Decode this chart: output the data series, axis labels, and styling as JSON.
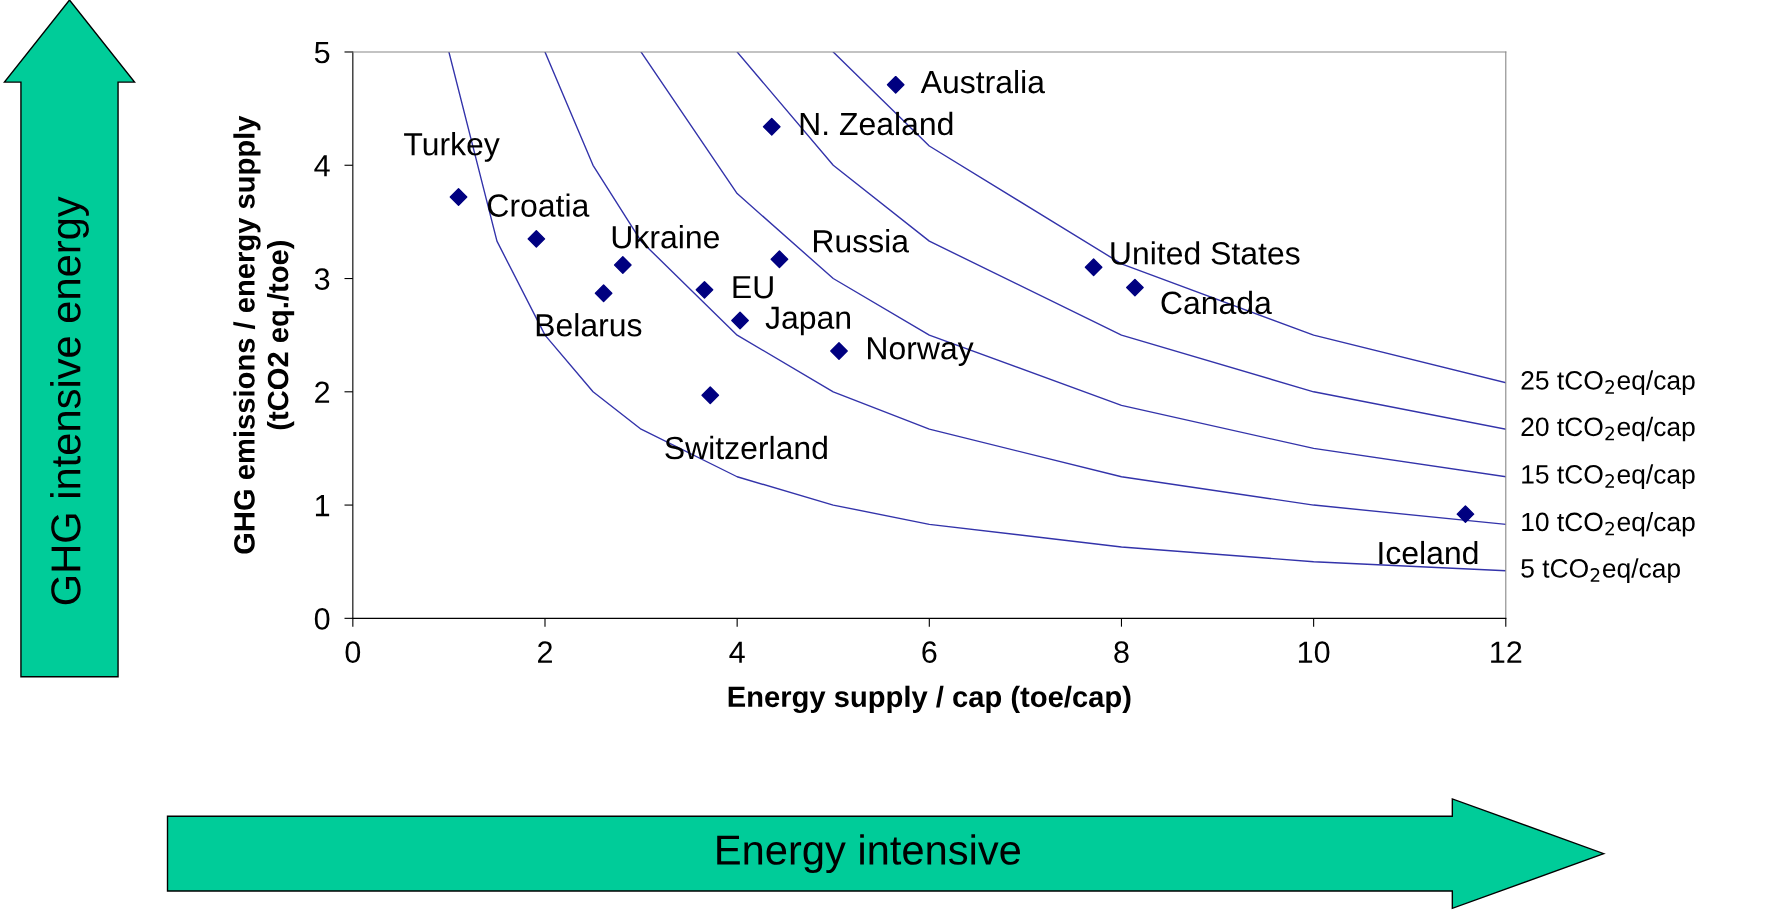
{
  "chart_data": {
    "type": "scatter",
    "xlabel": "Energy supply / cap (toe/cap)",
    "ylabel": "GHG emissions / energy supply\n(tCO2 eq./toe)",
    "xlim": [
      0,
      12
    ],
    "ylim": [
      0,
      5
    ],
    "xticks": [
      0,
      2,
      4,
      6,
      8,
      10,
      12
    ],
    "yticks": [
      0,
      1,
      2,
      3,
      4,
      5
    ],
    "grid": false,
    "marker": "diamond",
    "series": [
      {
        "color": "#000080",
        "x": [
          1.1,
          1.91,
          2.61,
          2.81,
          3.66,
          4.03,
          3.72,
          4.36,
          4.44,
          5.06,
          5.65,
          7.71,
          8.14,
          11.58
        ],
        "values": [
          3.72,
          3.35,
          2.87,
          3.12,
          2.9,
          2.63,
          1.97,
          4.34,
          3.17,
          2.36,
          4.71,
          3.1,
          2.92,
          0.92
        ]
      },
      {
        "type": "line",
        "marker": "none",
        "name": "25 tCO$_{2}$eq/cap",
        "color": "#3333aa",
        "x": [
          5,
          6,
          8,
          10,
          12
        ],
        "values": [
          5,
          4.17,
          3.13,
          2.5,
          2.08
        ]
      },
      {
        "type": "line",
        "marker": "none",
        "name": "20 tCO$_{2}$eq/cap",
        "color": "#3333aa",
        "x": [
          4,
          5,
          6,
          8,
          10,
          12
        ],
        "values": [
          5,
          4,
          3.33,
          2.5,
          2,
          1.67
        ]
      },
      {
        "type": "line",
        "marker": "none",
        "name": "15 tCO$_{2}$eq/cap",
        "color": "#3333aa",
        "x": [
          3,
          4,
          5,
          6,
          8,
          10,
          12
        ],
        "values": [
          5,
          3.75,
          3,
          2.5,
          1.88,
          1.5,
          1.25
        ]
      },
      {
        "type": "line",
        "marker": "none",
        "name": "10 tCO$_{2}$eq/cap",
        "color": "#3333aa",
        "x": [
          2,
          2.5,
          3,
          4,
          5,
          6,
          8,
          10,
          12
        ],
        "values": [
          5,
          4,
          3.33,
          2.5,
          2,
          1.67,
          1.25,
          1,
          0.83
        ]
      },
      {
        "type": "line",
        "marker": "none",
        "name": "5 tCO$_{2}$eq/cap",
        "color": "#3333aa",
        "x": [
          1,
          1.5,
          2,
          2.5,
          3,
          4,
          5,
          6,
          8,
          10,
          12
        ],
        "values": [
          5,
          3.33,
          2.5,
          2,
          1.67,
          1.25,
          1,
          0.83,
          0.63,
          0.5,
          0.42
        ]
      }
    ],
    "annotations": [
      {
        "text": "Turkey",
        "x": 1.1,
        "y": 3.72
      },
      {
        "text": "Croatia",
        "x": 1.91,
        "y": 3.35
      },
      {
        "text": "Belarus",
        "x": 2.61,
        "y": 2.87
      },
      {
        "text": "Ukraine",
        "x": 2.81,
        "y": 3.12
      },
      {
        "text": "EU",
        "x": 3.66,
        "y": 2.9
      },
      {
        "text": "Japan",
        "x": 4.03,
        "y": 2.63
      },
      {
        "text": "Switzerland",
        "x": 3.72,
        "y": 1.97
      },
      {
        "text": "N. Zealand",
        "x": 4.36,
        "y": 4.34
      },
      {
        "text": "Russia",
        "x": 4.44,
        "y": 3.17
      },
      {
        "text": "Norway",
        "x": 5.06,
        "y": 2.36
      },
      {
        "text": "Australia",
        "x": 5.65,
        "y": 4.71
      },
      {
        "text": "United States",
        "x": 7.71,
        "y": 3.1
      },
      {
        "text": "Canada",
        "x": 8.14,
        "y": 2.92
      },
      {
        "text": "Iceland",
        "x": 11.58,
        "y": 0.92
      },
      "GHG intensive energy",
      "Energy intensive"
    ]
  }
}
